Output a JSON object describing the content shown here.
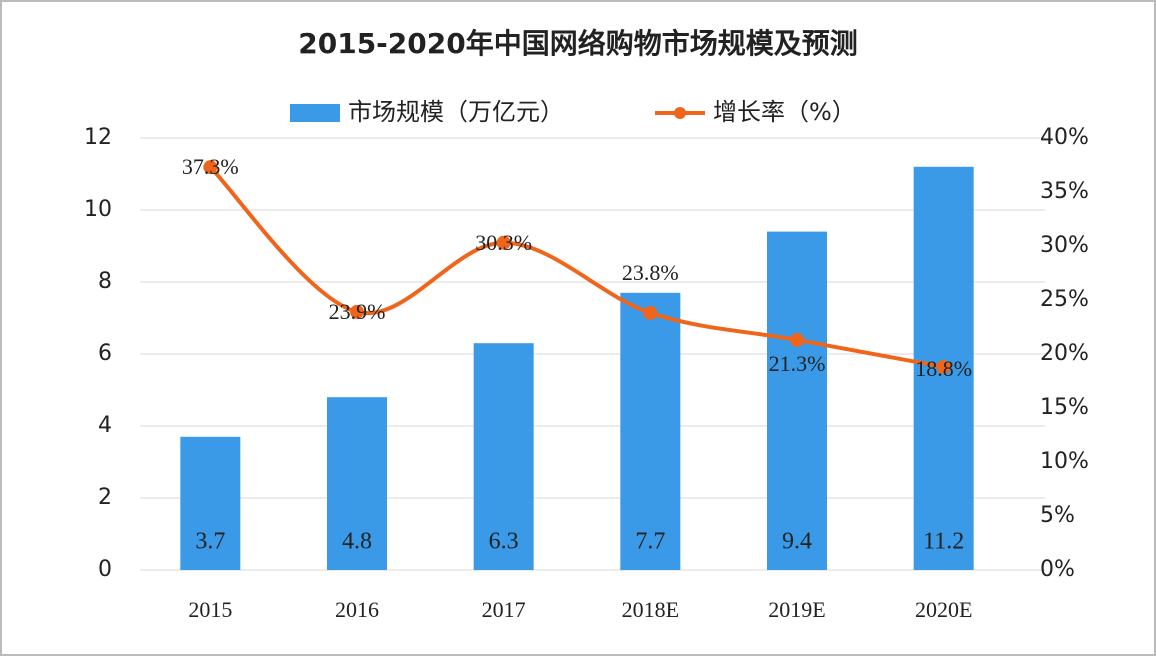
{
  "chart_data": {
    "type": "combo",
    "title": "2015-2020年中国网络购物市场规模及预测",
    "categories": [
      "2015",
      "2016",
      "2017",
      "2018E",
      "2019E",
      "2020E"
    ],
    "series": [
      {
        "name": "市场规模（万亿元）",
        "type": "bar",
        "color": "#3a9ae8",
        "values": [
          3.7,
          4.8,
          6.3,
          7.7,
          9.4,
          11.2
        ]
      },
      {
        "name": "增长率（%）",
        "type": "line",
        "color": "#f0651c",
        "axis": "y2",
        "values": [
          37.3,
          23.9,
          30.3,
          23.8,
          21.3,
          18.8
        ],
        "value_labels": [
          "37.3%",
          "23.9%",
          "30.3%",
          "23.8%",
          "21.3%",
          "18.8%"
        ]
      }
    ],
    "ylim": [
      0,
      12
    ],
    "yticks": [
      0,
      2,
      4,
      6,
      8,
      10,
      12
    ],
    "y2lim": [
      0,
      40
    ],
    "y2ticks": [
      {
        "value": 0,
        "label": "0%"
      },
      {
        "value": 5,
        "label": "5%"
      },
      {
        "value": 10,
        "label": "10%"
      },
      {
        "value": 15,
        "label": "15%"
      },
      {
        "value": 20,
        "label": "20%"
      },
      {
        "value": 25,
        "label": "25%"
      },
      {
        "value": 30,
        "label": "30%"
      },
      {
        "value": 35,
        "label": "35%"
      },
      {
        "value": 40,
        "label": "40%"
      }
    ],
    "grid": true
  }
}
